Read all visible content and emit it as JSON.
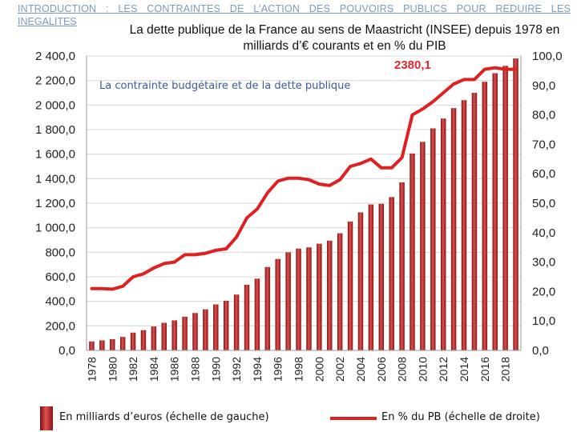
{
  "header": {
    "line1": "INTRODUCTION : LES CONTRAINTES DE L’ACTION DES POUVOIRS PUBLICS POUR REDUIRE LES",
    "line2": "INEGALITES"
  },
  "chart_data": {
    "type": "bar",
    "title": "La dette publique de la France au sens de Maastricht (INSEE) depuis 1978 en milliards d’€ courants et en % du PIB",
    "subtitle": "La contrainte budgétaire et de la dette publique",
    "callout": "2380,1",
    "years": [
      1978,
      1979,
      1980,
      1981,
      1982,
      1983,
      1984,
      1985,
      1986,
      1987,
      1988,
      1989,
      1990,
      1991,
      1992,
      1993,
      1994,
      1995,
      1996,
      1997,
      1998,
      1999,
      2000,
      2001,
      2002,
      2003,
      2004,
      2005,
      2006,
      2007,
      2008,
      2009,
      2010,
      2011,
      2012,
      2013,
      2014,
      2015,
      2016,
      2017,
      2018,
      2019
    ],
    "x_tick_labels": [
      "1978",
      "1980",
      "1982",
      "1984",
      "1986",
      "1988",
      "1990",
      "1992",
      "1994",
      "1996",
      "1998",
      "2000",
      "2002",
      "2004",
      "2006",
      "2008",
      "2010",
      "2012",
      "2014",
      "2016",
      "2018"
    ],
    "series": [
      {
        "name": "En milliards d’euros (échelle de gauche)",
        "axis": "left",
        "color": "#b01e1e",
        "values": [
          73,
          82,
          92,
          110,
          145,
          165,
          195,
          225,
          245,
          275,
          305,
          335,
          375,
          405,
          455,
          535,
          585,
          680,
          745,
          800,
          830,
          840,
          870,
          895,
          955,
          1050,
          1125,
          1190,
          1195,
          1250,
          1370,
          1605,
          1700,
          1810,
          1890,
          1975,
          2040,
          2100,
          2190,
          2260,
          2320,
          2380.1
        ]
      },
      {
        "name": "En % du PB (échelle de droite)",
        "axis": "right",
        "color": "#e02020",
        "values": [
          21.0,
          21.0,
          20.8,
          21.8,
          25.0,
          26.0,
          28.0,
          29.5,
          30.0,
          32.5,
          32.5,
          33.0,
          34.0,
          34.5,
          38.5,
          45.0,
          48.0,
          53.5,
          57.5,
          58.5,
          58.5,
          58.0,
          56.5,
          56.0,
          58.0,
          62.5,
          63.5,
          65.0,
          62.0,
          62.0,
          65.5,
          80.0,
          82.0,
          84.5,
          87.5,
          90.5,
          92.0,
          92.0,
          95.5,
          96.0,
          95.5,
          95.5
        ]
      }
    ],
    "y_left": {
      "min": 0,
      "max": 2400,
      "ticks": [
        "0,0",
        "200,0",
        "400,0",
        "600,0",
        "800,0",
        "1 000,0",
        "1 200,0",
        "1 400,0",
        "1 600,0",
        "1 800,0",
        "2 000,0",
        "2 200,0",
        "2 400,0"
      ]
    },
    "y_right": {
      "min": 0,
      "max": 100,
      "ticks": [
        "0,0",
        "10,0",
        "20,0",
        "30,0",
        "40,0",
        "50,0",
        "60,0",
        "70,0",
        "80,0",
        "90,0",
        "100,0"
      ]
    }
  },
  "legend": {
    "left_label": "En milliards d’euros (échelle de gauche)",
    "right_label": "En % du PB (échelle de droite)"
  }
}
